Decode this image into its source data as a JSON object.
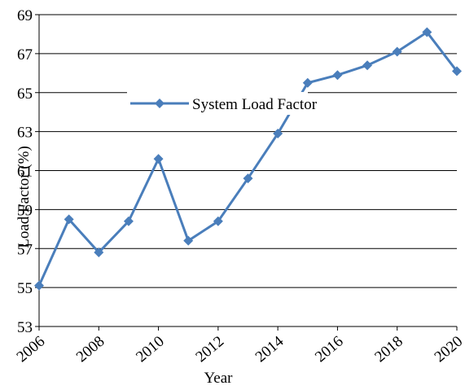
{
  "chart_data": {
    "type": "line",
    "x": [
      2006,
      2007,
      2008,
      2009,
      2010,
      2011,
      2012,
      2013,
      2014,
      2015,
      2016,
      2017,
      2018,
      2019,
      2020
    ],
    "series": [
      {
        "name": "System Load Factor",
        "color": "#4a7ebb",
        "values": [
          55.1,
          58.5,
          56.8,
          58.4,
          61.6,
          57.4,
          58.4,
          60.6,
          62.9,
          65.5,
          65.9,
          66.4,
          67.1,
          68.1,
          66.1
        ]
      }
    ],
    "xlim": [
      2006,
      2020
    ],
    "xticks": [
      2006,
      2008,
      2010,
      2012,
      2014,
      2016,
      2018,
      2020
    ],
    "ylim": [
      53,
      69
    ],
    "yticks": [
      53,
      55,
      57,
      59,
      61,
      63,
      65,
      67,
      69
    ],
    "xlabel": "Year",
    "ylabel": "Load Factor (%)",
    "grid": true,
    "legend": "upper left"
  }
}
